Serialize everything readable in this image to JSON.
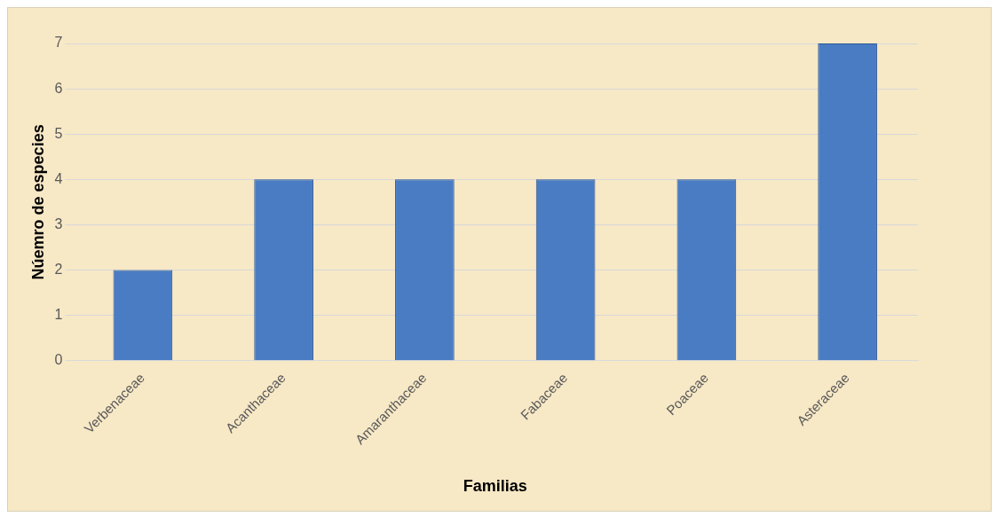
{
  "chart_data": {
    "type": "bar",
    "xlabel": "Familias",
    "ylabel": "Núemro de especies",
    "categories": [
      "Verbenaceae",
      "Acanthaceae",
      "Amaranthaceae",
      "Fabaceae",
      "Poaceae",
      "Asteraceae"
    ],
    "values": [
      2,
      4,
      4,
      4,
      4,
      7
    ],
    "color": "#4a7cc4",
    "ylim": [
      0,
      7
    ],
    "yticks": [
      0,
      1,
      2,
      3,
      4,
      5,
      6,
      7
    ],
    "grid": "y",
    "legend": false
  }
}
